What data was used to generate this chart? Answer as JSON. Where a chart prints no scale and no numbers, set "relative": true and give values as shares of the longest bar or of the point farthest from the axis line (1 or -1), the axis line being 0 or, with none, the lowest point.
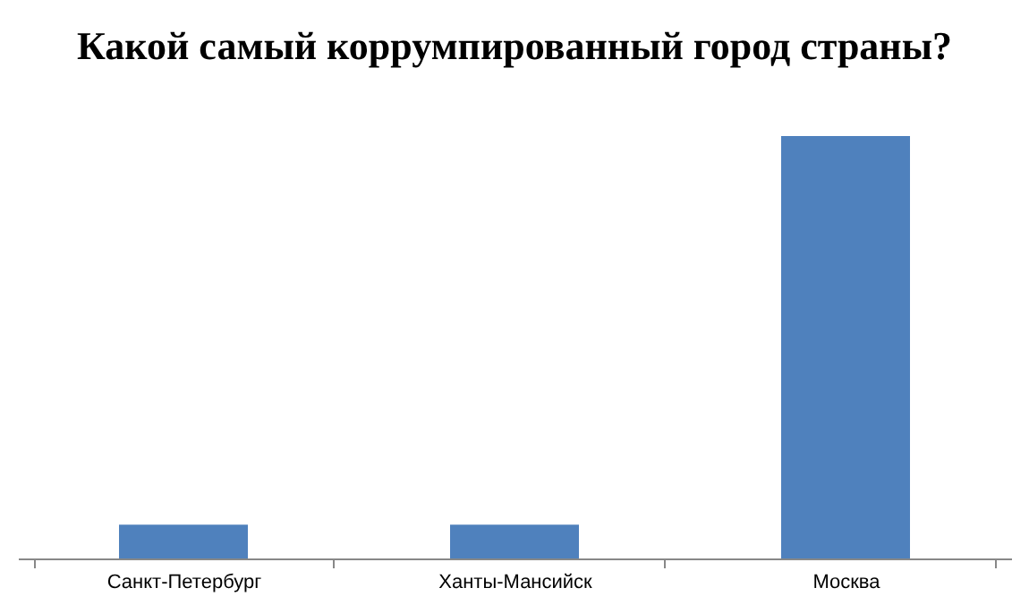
{
  "chart_data": {
    "type": "bar",
    "title": "Какой самый коррумпированный город страны?",
    "categories": [
      "Санкт-Петербург",
      "Ханты-Мансийск",
      "Москва"
    ],
    "values": [
      0.08,
      0.08,
      1
    ],
    "color": "#4f81bd",
    "relative": true
  }
}
